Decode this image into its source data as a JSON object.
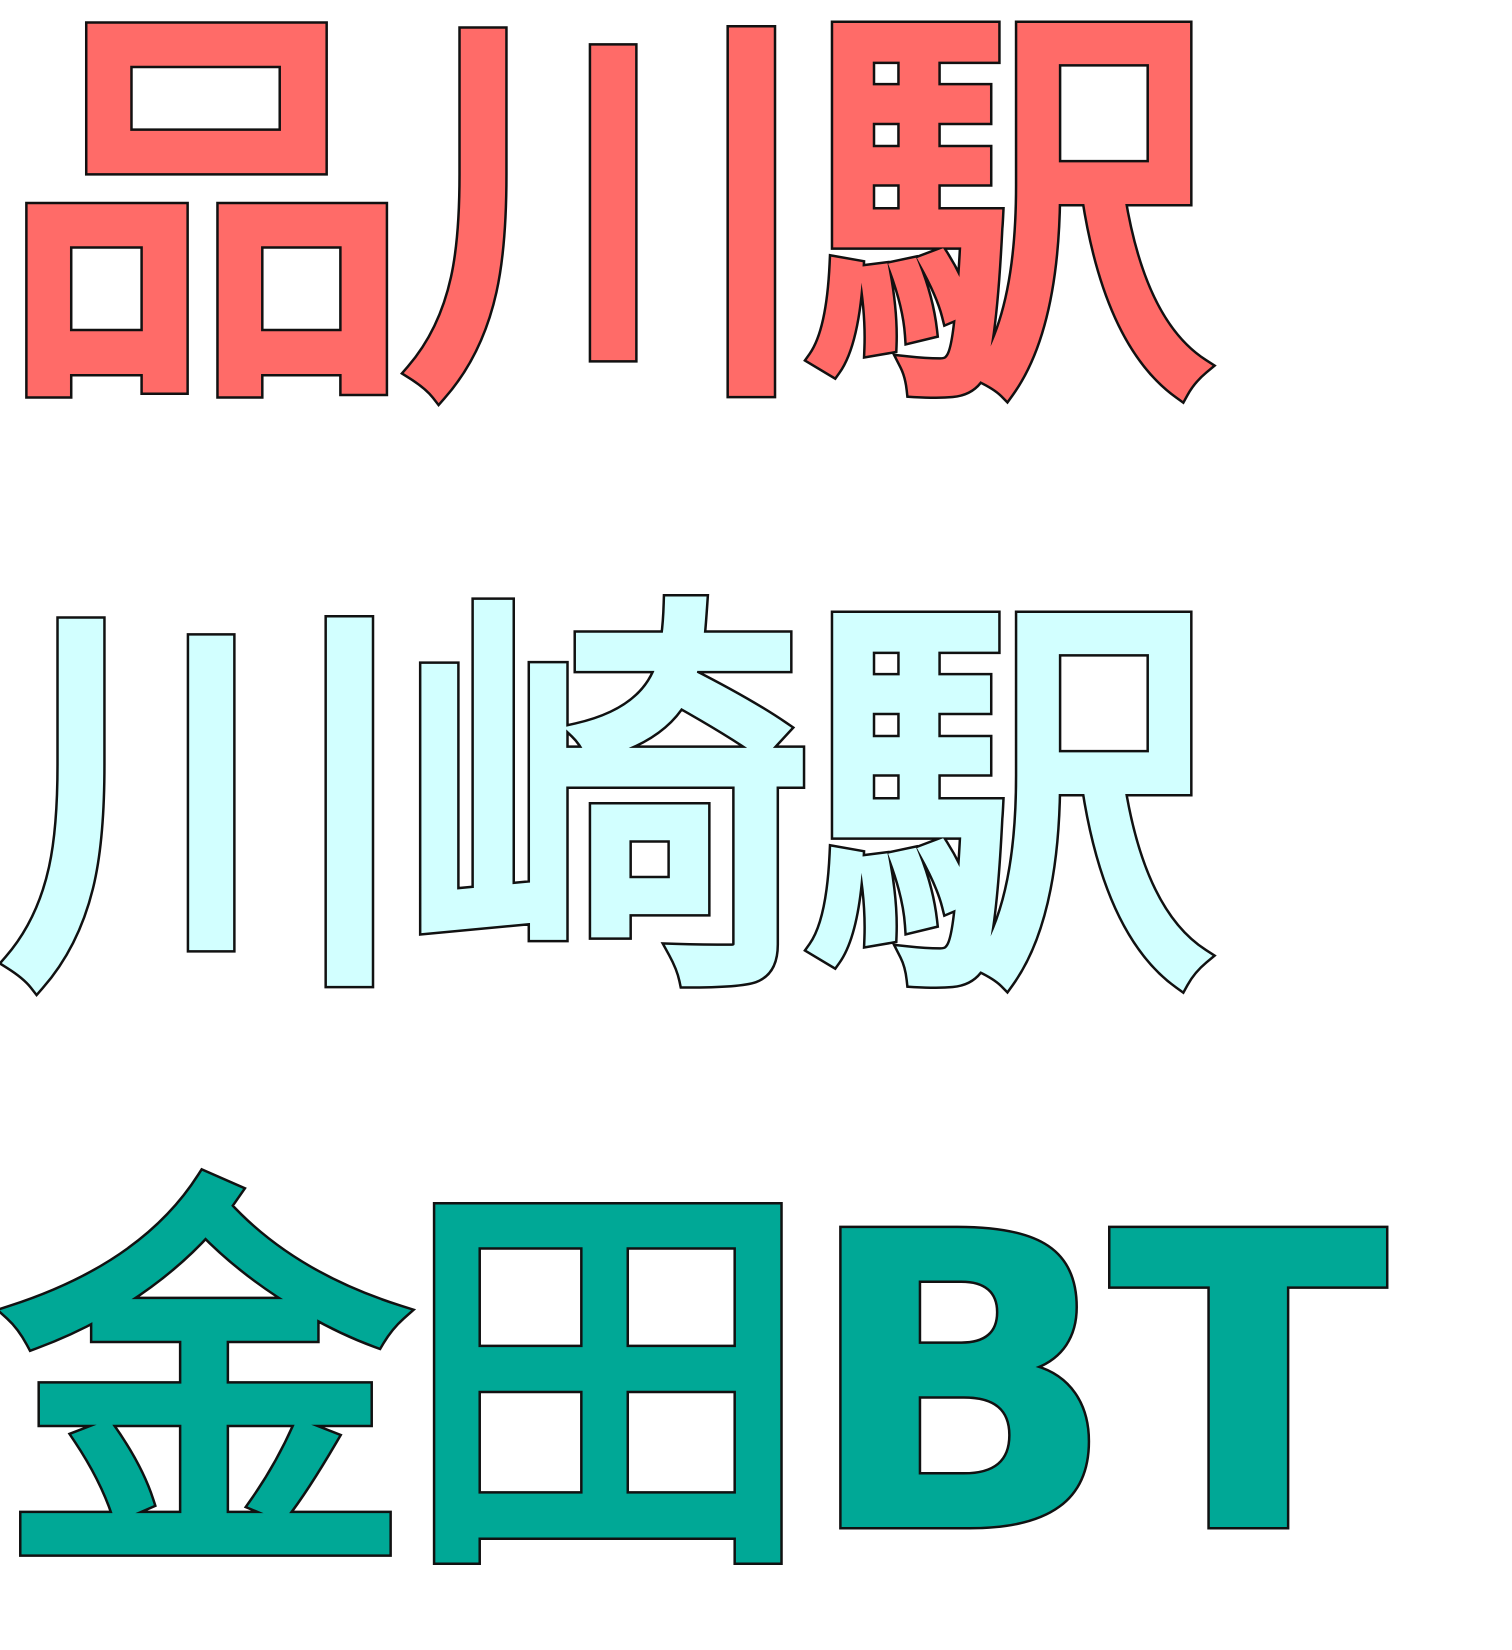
{
  "labels": [
    {
      "text": "品川駅",
      "fill_color": "#FF6B68"
    },
    {
      "text": "川崎駅",
      "fill_color": "#D2FFFF"
    },
    {
      "text": "金田BT",
      "fill_color": "#00A896"
    }
  ],
  "outline_color": "#111111",
  "background_color": "#FFFFFF"
}
